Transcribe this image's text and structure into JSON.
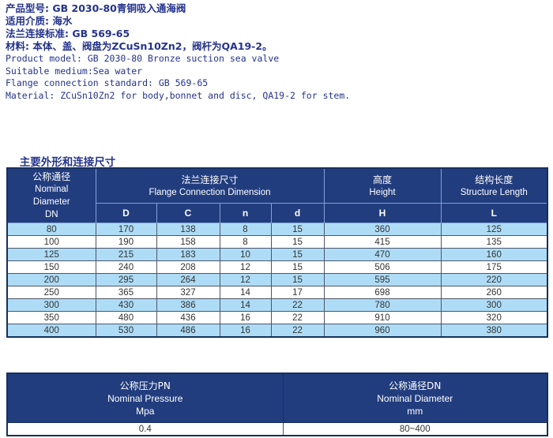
{
  "colors": {
    "text_navy": "#24338c",
    "table_header_bg": "#223d7e",
    "row_alt_blue": "#aedcf6",
    "border_dark": "#16305e",
    "header_divider": "#7fa3d6",
    "cell_text": "#333333"
  },
  "info": {
    "lines_zh": [
      "产品型号: GB 2030-80青铜吸入通海阀",
      "适用介质: 海水",
      "法兰连接标准: GB 569-65",
      "材料: 本体、盖、阀盘为ZCuSn10Zn2，阀杆为QA19-2。"
    ],
    "lines_en": [
      "Product model: GB 2030-80 Bronze suction sea valve",
      "Suitable medium:Sea water",
      "Flange connection standard: GB 569-65",
      "Material: ZCuSn10Zn2 for body,bonnet and disc, QA19-2 for stem."
    ]
  },
  "section": {
    "title_zh": "主要外形和连接尺寸",
    "title_en": "Main external and connection  dimension"
  },
  "main_table": {
    "columns": {
      "dn": {
        "zh": "公称通径",
        "en1": "Nominal",
        "en2": "Diameter",
        "sub": "DN"
      },
      "flange": {
        "zh": "法兰连接尺寸",
        "en": "Flange Connection Dimension",
        "subs": [
          "D",
          "C",
          "n",
          "d"
        ]
      },
      "height": {
        "zh": "高度",
        "en": "Height",
        "sub": "H"
      },
      "length": {
        "zh": "结构长度",
        "en": "Structure Length",
        "sub": "L"
      }
    },
    "rows": [
      [
        80,
        170,
        138,
        8,
        15,
        360,
        125
      ],
      [
        100,
        190,
        158,
        8,
        15,
        415,
        135
      ],
      [
        125,
        215,
        183,
        10,
        15,
        470,
        160
      ],
      [
        150,
        240,
        208,
        12,
        15,
        506,
        175
      ],
      [
        200,
        295,
        264,
        12,
        15,
        595,
        220
      ],
      [
        250,
        365,
        327,
        14,
        17,
        698,
        260
      ],
      [
        300,
        430,
        386,
        14,
        22,
        780,
        300
      ],
      [
        350,
        480,
        436,
        16,
        22,
        910,
        320
      ],
      [
        400,
        530,
        486,
        16,
        22,
        960,
        380
      ]
    ]
  },
  "bottom_table": {
    "pressure": {
      "zh": "公称压力PN",
      "en": "Nominal Pressure",
      "unit": "Mpa",
      "value": "0.4"
    },
    "diameter": {
      "zh": "公称通径DN",
      "en": "Nominal Diameter",
      "unit": "mm",
      "value": "80~400"
    }
  }
}
